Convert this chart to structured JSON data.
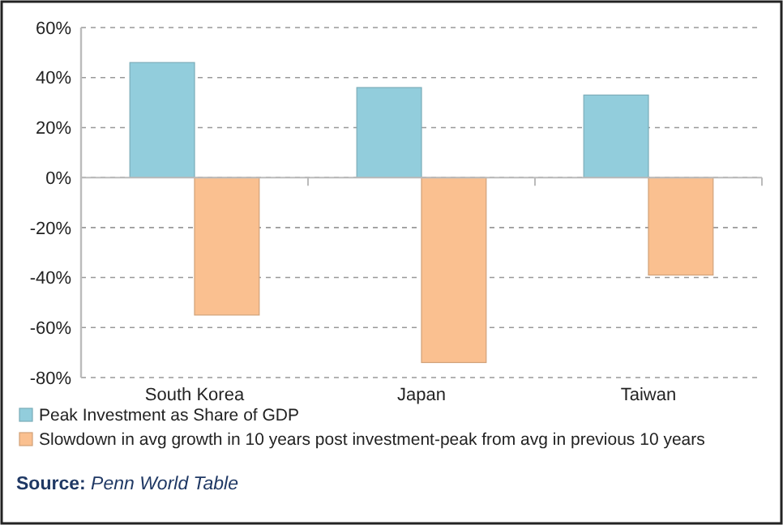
{
  "chart_data": {
    "type": "bar",
    "categories": [
      "South Korea",
      "Japan",
      "Taiwan"
    ],
    "series": [
      {
        "name": "Peak Investment as Share of GDP",
        "color": "#92cddc",
        "values": [
          46,
          36,
          33
        ]
      },
      {
        "name": "Slowdown in avg growth in 10 years post investment-peak from avg in previous 10 years",
        "color": "#fac090",
        "values": [
          -55,
          -74,
          -39
        ]
      }
    ],
    "ylim": [
      -80,
      60
    ],
    "yticks": [
      {
        "value": -80,
        "label": "-80%"
      },
      {
        "value": -60,
        "label": "-60%"
      },
      {
        "value": -40,
        "label": "-40%"
      },
      {
        "value": -20,
        "label": "-20%"
      },
      {
        "value": 0,
        "label": "0%"
      },
      {
        "value": 20,
        "label": "20%"
      },
      {
        "value": 40,
        "label": "40%"
      },
      {
        "value": 60,
        "label": "60%"
      }
    ],
    "grid": "y",
    "legend": "bottom",
    "annotations": [
      "Source: Penn World Table"
    ]
  }
}
